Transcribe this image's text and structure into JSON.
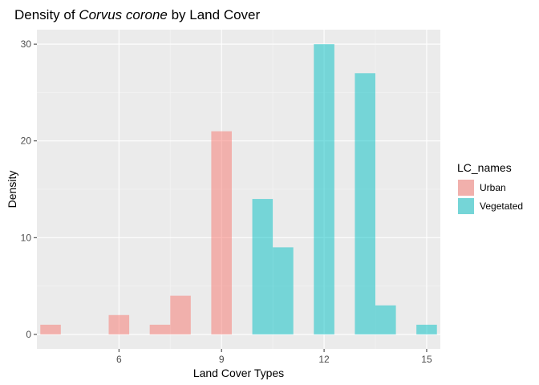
{
  "chart_data": {
    "type": "bar",
    "title_prefix": "Density of ",
    "title_species": "Corvus corone",
    "title_suffix": " by Land Cover",
    "xlabel": "Land Cover Types",
    "ylabel": "Density",
    "xlim": [
      3.6,
      15.4
    ],
    "ylim": [
      -1.5,
      31.5
    ],
    "x_ticks": [
      6,
      9,
      12,
      15
    ],
    "y_ticks": [
      0,
      10,
      20,
      30
    ],
    "x_tick_labels": [
      "6",
      "9",
      "12",
      "15"
    ],
    "y_tick_labels": [
      "0",
      "10",
      "20",
      "30"
    ],
    "bin_width": 0.6,
    "grid": true,
    "legend_position": "right",
    "legend_title": "LC_names",
    "series": [
      {
        "name": "Urban",
        "color": "#F8766D",
        "bars": [
          {
            "x": 4.0,
            "y": 1
          },
          {
            "x": 6.0,
            "y": 2
          },
          {
            "x": 7.2,
            "y": 1
          },
          {
            "x": 7.8,
            "y": 4
          },
          {
            "x": 9.0,
            "y": 21
          }
        ]
      },
      {
        "name": "Vegetated",
        "color": "#00BFC4",
        "bars": [
          {
            "x": 10.2,
            "y": 14
          },
          {
            "x": 10.8,
            "y": 9
          },
          {
            "x": 12.0,
            "y": 30
          },
          {
            "x": 13.2,
            "y": 27
          },
          {
            "x": 13.8,
            "y": 3
          },
          {
            "x": 15.0,
            "y": 1
          }
        ]
      }
    ]
  },
  "colors": {
    "panel_background": "#EBEBEB",
    "grid_major": "#FFFFFF",
    "grid_minor": "#F5F5F5",
    "bar_opacity": 0.5
  }
}
